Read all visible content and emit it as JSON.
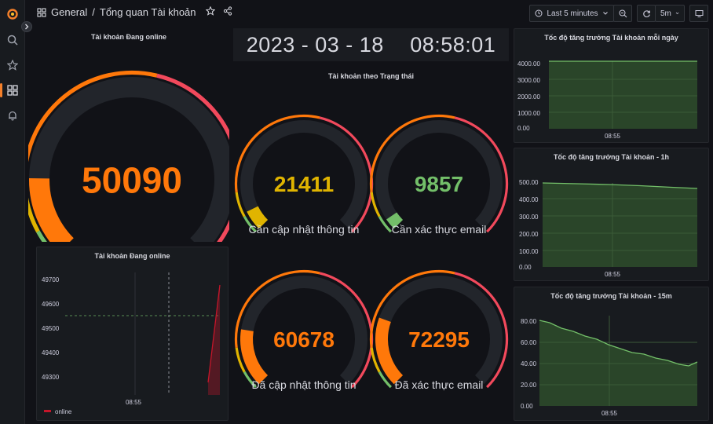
{
  "breadcrumb": {
    "folder": "General",
    "separator": "/",
    "dashboard": "Tổng quan Tài khoản"
  },
  "toolbar": {
    "time_range": "Last 5 minutes",
    "refresh_interval": "5m"
  },
  "datetime": {
    "date": "2023 - 03 - 18",
    "time": "08:58:01"
  },
  "colors": {
    "orange": "#ff780a",
    "yellow": "#e0b400",
    "green": "#73bf69",
    "red": "#f2495c",
    "track": "#22252b"
  },
  "online_gauge": {
    "title": "Tài khoản Đang online",
    "value": "50090",
    "fill": 0.17,
    "color": "#ff780a"
  },
  "status_section": {
    "title": "Tài khoản theo Trạng thái"
  },
  "status_gauges": [
    {
      "value": "21411",
      "label": "Cần cập nhật thông tin",
      "fill": 0.07,
      "color": "#e0b400"
    },
    {
      "value": "9857",
      "label": "Cần xác thực email",
      "fill": 0.04,
      "color": "#73bf69"
    },
    {
      "value": "60678",
      "label": "Đã cập nhật thông tin",
      "fill": 0.2,
      "color": "#ff780a"
    },
    {
      "value": "72295",
      "label": "Đã xác thực email",
      "fill": 0.24,
      "color": "#ff780a"
    }
  ],
  "online_chart": {
    "title": "Tài khoản Đang online",
    "yticks": [
      "49700",
      "49600",
      "49500",
      "49400",
      "49300"
    ],
    "xtick": "08:55",
    "legend": "online"
  },
  "growth_daily": {
    "title": "Tốc độ tăng trưởng Tài khoản mỗi ngày",
    "yticks": [
      "4000.00",
      "3000.00",
      "2000.00",
      "1000.00",
      "0.00"
    ],
    "xtick": "08:55"
  },
  "growth_1h": {
    "title": "Tốc độ tăng trưởng Tài khoản - 1h",
    "yticks": [
      "500.00",
      "400.00",
      "300.00",
      "200.00",
      "100.00",
      "0.00"
    ],
    "xtick": "08:55"
  },
  "growth_15m": {
    "title": "Tốc độ tăng trưởng Tài khoản - 15m",
    "yticks": [
      "80.00",
      "60.00",
      "40.00",
      "20.00",
      "0.00"
    ],
    "xtick": "08:55"
  }
}
